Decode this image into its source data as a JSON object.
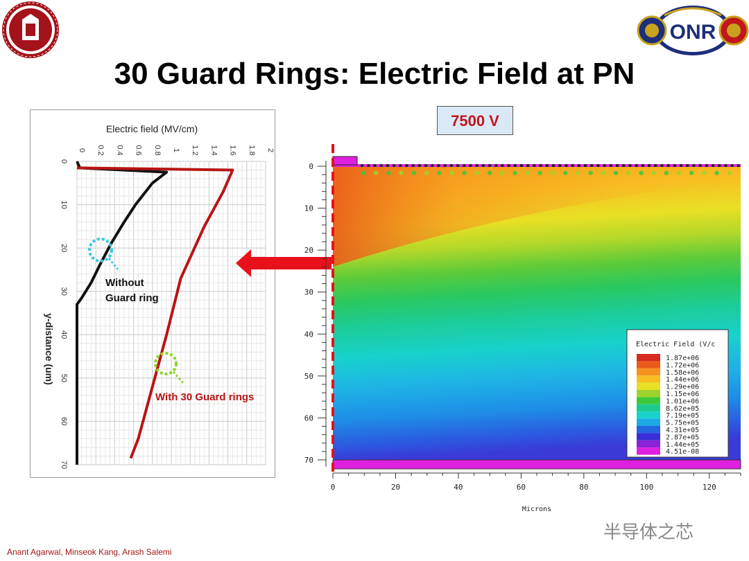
{
  "slide": {
    "title": "30 Guard Rings: Electric Field at PN",
    "footer": "Anant Agarwal, Minseok Kang, Arash Salemi",
    "voltage_label": "7500 V",
    "watermark": "半导体之芯",
    "logos": [
      {
        "name": "ohio-state-university-seal",
        "text": "OHIO STATE UNIVERSITY 1870"
      },
      {
        "name": "office-of-naval-research-logo",
        "text": "OFFICE OF ONR NAVAL RESEARCH"
      }
    ],
    "colors": {
      "title": "#000000",
      "footer": "#a0161a",
      "arrow": "#e8101a",
      "voltage_text": "#c0161c"
    }
  },
  "chart_data": [
    {
      "type": "line",
      "orientation": "rotated",
      "xlabel": "Electric field (MV/cm)",
      "ylabel": "y-distance (um)",
      "xlim": [
        0,
        2
      ],
      "ylim": [
        0,
        70
      ],
      "x_ticks": [
        "0",
        "0.2",
        "0.4",
        "0.6",
        "0.8",
        "1",
        "1.2",
        "1.4",
        "1.6",
        "1.8",
        "2"
      ],
      "y_ticks": [
        "0",
        "10",
        "20",
        "30",
        "40",
        "50",
        "60",
        "70"
      ],
      "grid": true,
      "series": [
        {
          "name": "Without Guard ring",
          "color": "#111111",
          "points": [
            [
              0,
              0
            ],
            [
              0.03,
              1.5
            ],
            [
              0.95,
              2.5
            ],
            [
              0.8,
              5
            ],
            [
              0.62,
              10
            ],
            [
              0.5,
              14
            ],
            [
              0.36,
              19
            ],
            [
              0.24,
              24
            ],
            [
              0.15,
              28
            ],
            [
              0.05,
              31.5
            ],
            [
              0,
              33
            ],
            [
              0,
              70
            ]
          ]
        },
        {
          "name": "With 30 Guard rings",
          "color": "#b81414",
          "points": [
            [
              0,
              1.5
            ],
            [
              1.65,
              2
            ],
            [
              1.55,
              7
            ],
            [
              1.35,
              15
            ],
            [
              1.1,
              27
            ],
            [
              0.95,
              40
            ],
            [
              0.8,
              52
            ],
            [
              0.65,
              64
            ],
            [
              0.57,
              68.5
            ]
          ]
        }
      ],
      "annotations": [
        {
          "text": "Without",
          "color": "#111111"
        },
        {
          "text": "Guard ring",
          "color": "#111111"
        },
        {
          "text": "With 30 Guard rings",
          "color": "#b81414"
        }
      ]
    },
    {
      "type": "heatmap",
      "xlabel": "Microns",
      "xlim": [
        0,
        130
      ],
      "ylim": [
        0,
        72
      ],
      "x_ticks": [
        "0",
        "20",
        "40",
        "60",
        "80",
        "100",
        "120"
      ],
      "y_ticks": [
        "0",
        "10",
        "20",
        "30",
        "40",
        "50",
        "60",
        "70"
      ],
      "legend": {
        "title": "Electric Field (V/c",
        "placement": "bottom-right",
        "entries": [
          {
            "value": "1.87e+06",
            "color": "#d62b1e"
          },
          {
            "value": "1.72e+06",
            "color": "#ea5a1a"
          },
          {
            "value": "1.58e+06",
            "color": "#f6921e"
          },
          {
            "value": "1.44e+06",
            "color": "#f8bf22"
          },
          {
            "value": "1.29e+06",
            "color": "#e8e024"
          },
          {
            "value": "1.15e+06",
            "color": "#9ed42c"
          },
          {
            "value": "1.01e+06",
            "color": "#3ec83c"
          },
          {
            "value": "8.62e+05",
            "color": "#1ccc8e"
          },
          {
            "value": "7.19e+05",
            "color": "#18d2cc"
          },
          {
            "value": "5.75e+05",
            "color": "#1ea8e6"
          },
          {
            "value": "4.31e+05",
            "color": "#2266e0"
          },
          {
            "value": "2.87e+05",
            "color": "#3a2ed8"
          },
          {
            "value": "1.44e+05",
            "color": "#8a22d6"
          },
          {
            "value": "4.51e-08",
            "color": "#e020e0"
          }
        ]
      }
    }
  ]
}
